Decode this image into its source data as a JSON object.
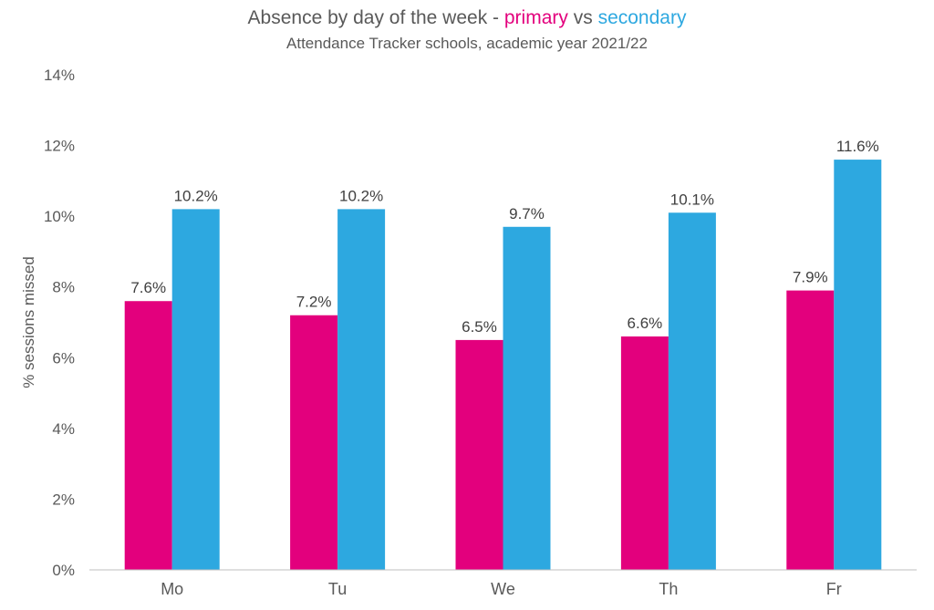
{
  "chart_data": {
    "type": "bar",
    "title": {
      "prefix": "Absence by day of the week - ",
      "primary_word": "primary",
      "joiner": " vs ",
      "secondary_word": "secondary"
    },
    "subtitle": "Attendance Tracker schools, academic year 2021/22",
    "xlabel": "",
    "ylabel": "% sessions missed",
    "ylim": [
      0,
      14
    ],
    "yticks": [
      0,
      2,
      4,
      6,
      8,
      10,
      12,
      14
    ],
    "ytick_labels": [
      "0%",
      "2%",
      "4%",
      "6%",
      "8%",
      "10%",
      "12%",
      "14%"
    ],
    "categories": [
      "Mo",
      "Tu",
      "We",
      "Th",
      "Fr"
    ],
    "series": [
      {
        "key": "primary",
        "color": "#E3007D",
        "values": [
          7.6,
          7.2,
          6.5,
          6.6,
          7.9
        ],
        "labels": [
          "7.6%",
          "7.2%",
          "6.5%",
          "6.6%",
          "7.9%"
        ]
      },
      {
        "key": "secondary",
        "color": "#2DA8E0",
        "values": [
          10.2,
          10.2,
          9.7,
          10.1,
          11.6
        ],
        "labels": [
          "10.2%",
          "10.2%",
          "9.7%",
          "10.1%",
          "11.6%"
        ]
      }
    ],
    "grid": false,
    "legend": "in-title"
  }
}
